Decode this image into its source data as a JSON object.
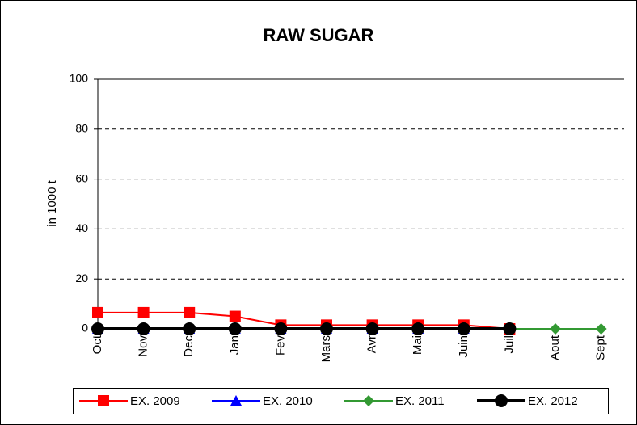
{
  "chart_data": {
    "type": "line",
    "title": "RAW SUGAR",
    "y_label": "in 1000 t",
    "categories": [
      "Oct",
      "Nov",
      "Dec",
      "Jan",
      "Fev",
      "Mars",
      "Avr",
      "Mai",
      "Juin",
      "Juil",
      "Aout",
      "Sept"
    ],
    "series": [
      {
        "name": "EX. 2009",
        "color": "#ff0000",
        "marker": "square",
        "values": [
          6.5,
          6.5,
          6.5,
          5,
          1.5,
          1.5,
          1.5,
          1.5,
          1.5,
          0,
          null,
          null
        ]
      },
      {
        "name": "EX. 2010",
        "color": "#0000ff",
        "marker": "triangle",
        "values": [
          0,
          0,
          0,
          0,
          0,
          0,
          0,
          0,
          0,
          0,
          null,
          null
        ]
      },
      {
        "name": "EX. 2011",
        "color": "#339933",
        "marker": "diamond",
        "values": [
          0,
          0,
          0,
          0,
          0,
          0,
          0,
          0,
          0,
          0,
          0,
          0
        ]
      },
      {
        "name": "EX. 2012",
        "color": "#000000",
        "marker": "circle",
        "values": [
          0,
          0,
          0,
          0,
          0,
          0,
          0,
          0,
          0,
          0,
          null,
          null
        ]
      }
    ],
    "ylim": [
      0,
      100
    ],
    "yticks": [
      0,
      20,
      40,
      60,
      80,
      100
    ],
    "grid": true,
    "legend": "bottom"
  }
}
